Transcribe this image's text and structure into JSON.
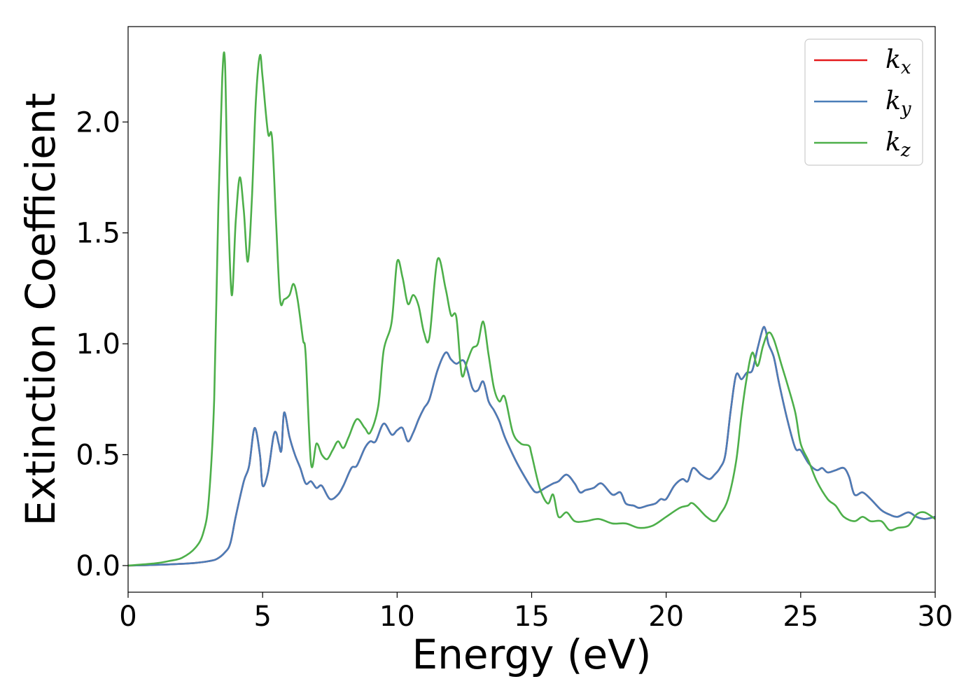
{
  "chart_data": {
    "type": "line",
    "title": "",
    "xlabel": "Energy (eV)",
    "ylabel": "Extinction Coefficient",
    "xlim": [
      0,
      30
    ],
    "ylim": [
      -0.12,
      2.43
    ],
    "xticks": [
      0,
      5,
      10,
      15,
      20,
      25,
      30
    ],
    "yticks": [
      0.0,
      0.5,
      1.0,
      1.5,
      2.0
    ],
    "xtick_labels": [
      "0",
      "5",
      "10",
      "15",
      "20",
      "25",
      "30"
    ],
    "ytick_labels": [
      "0.0",
      "0.5",
      "1.0",
      "1.5",
      "2.0"
    ],
    "grid": false,
    "legend_position": "top-right",
    "series": [
      {
        "name": "k_x",
        "legend_base": "k",
        "legend_sub": "x",
        "color": "#e41a1c",
        "x": [
          0,
          1,
          2,
          2.5,
          3,
          3.3,
          3.6,
          3.8,
          4.0,
          4.3,
          4.5,
          4.7,
          4.9,
          5.0,
          5.2,
          5.4,
          5.5,
          5.6,
          5.7,
          5.8,
          6.0,
          6.2,
          6.4,
          6.6,
          6.8,
          7.0,
          7.2,
          7.5,
          7.8,
          8.0,
          8.3,
          8.5,
          8.8,
          9.0,
          9.2,
          9.5,
          9.8,
          10.0,
          10.2,
          10.4,
          10.6,
          10.8,
          11.0,
          11.2,
          11.5,
          11.8,
          12.0,
          12.2,
          12.5,
          12.8,
          13.0,
          13.2,
          13.4,
          13.6,
          13.8,
          14.0,
          14.3,
          14.6,
          15.0,
          15.2,
          15.5,
          15.8,
          16.0,
          16.3,
          16.6,
          16.8,
          17.0,
          17.3,
          17.6,
          18.0,
          18.3,
          18.5,
          18.8,
          19.0,
          19.3,
          19.6,
          19.8,
          20.0,
          20.3,
          20.6,
          20.8,
          21.0,
          21.3,
          21.6,
          21.8,
          22.0,
          22.2,
          22.4,
          22.6,
          22.8,
          23.0,
          23.2,
          23.4,
          23.6,
          23.7,
          23.8,
          24.0,
          24.2,
          24.5,
          24.8,
          25.0,
          25.3,
          25.6,
          25.8,
          26.0,
          26.3,
          26.6,
          26.8,
          27.0,
          27.3,
          27.6,
          28.0,
          28.3,
          28.6,
          29.0,
          29.3,
          29.6,
          30.0
        ],
        "y": [
          0,
          0.003,
          0.008,
          0.012,
          0.02,
          0.03,
          0.06,
          0.1,
          0.22,
          0.38,
          0.45,
          0.62,
          0.5,
          0.36,
          0.42,
          0.58,
          0.6,
          0.55,
          0.52,
          0.69,
          0.58,
          0.5,
          0.44,
          0.37,
          0.38,
          0.35,
          0.36,
          0.3,
          0.32,
          0.36,
          0.44,
          0.45,
          0.53,
          0.56,
          0.56,
          0.64,
          0.59,
          0.61,
          0.62,
          0.56,
          0.6,
          0.66,
          0.71,
          0.75,
          0.88,
          0.96,
          0.93,
          0.91,
          0.92,
          0.8,
          0.79,
          0.83,
          0.74,
          0.7,
          0.65,
          0.58,
          0.5,
          0.43,
          0.35,
          0.33,
          0.35,
          0.37,
          0.38,
          0.41,
          0.37,
          0.33,
          0.34,
          0.35,
          0.37,
          0.32,
          0.33,
          0.28,
          0.27,
          0.26,
          0.27,
          0.28,
          0.3,
          0.3,
          0.36,
          0.39,
          0.38,
          0.44,
          0.41,
          0.39,
          0.41,
          0.44,
          0.5,
          0.7,
          0.86,
          0.84,
          0.87,
          0.88,
          0.98,
          1.07,
          1.06,
          1.0,
          0.94,
          0.82,
          0.66,
          0.53,
          0.52,
          0.46,
          0.43,
          0.44,
          0.42,
          0.43,
          0.44,
          0.4,
          0.32,
          0.33,
          0.3,
          0.25,
          0.23,
          0.22,
          0.24,
          0.22,
          0.21,
          0.22
        ]
      },
      {
        "name": "k_y",
        "legend_base": "k",
        "legend_sub": "y",
        "color": "#4a7db8",
        "x": [
          0,
          1,
          2,
          2.5,
          3,
          3.3,
          3.6,
          3.8,
          4.0,
          4.3,
          4.5,
          4.7,
          4.9,
          5.0,
          5.2,
          5.4,
          5.5,
          5.6,
          5.7,
          5.8,
          6.0,
          6.2,
          6.4,
          6.6,
          6.8,
          7.0,
          7.2,
          7.5,
          7.8,
          8.0,
          8.3,
          8.5,
          8.8,
          9.0,
          9.2,
          9.5,
          9.8,
          10.0,
          10.2,
          10.4,
          10.6,
          10.8,
          11.0,
          11.2,
          11.5,
          11.8,
          12.0,
          12.2,
          12.5,
          12.8,
          13.0,
          13.2,
          13.4,
          13.6,
          13.8,
          14.0,
          14.3,
          14.6,
          15.0,
          15.2,
          15.5,
          15.8,
          16.0,
          16.3,
          16.6,
          16.8,
          17.0,
          17.3,
          17.6,
          18.0,
          18.3,
          18.5,
          18.8,
          19.0,
          19.3,
          19.6,
          19.8,
          20.0,
          20.3,
          20.6,
          20.8,
          21.0,
          21.3,
          21.6,
          21.8,
          22.0,
          22.2,
          22.4,
          22.6,
          22.8,
          23.0,
          23.2,
          23.4,
          23.6,
          23.7,
          23.8,
          24.0,
          24.2,
          24.5,
          24.8,
          25.0,
          25.3,
          25.6,
          25.8,
          26.0,
          26.3,
          26.6,
          26.8,
          27.0,
          27.3,
          27.6,
          28.0,
          28.3,
          28.6,
          29.0,
          29.3,
          29.6,
          30.0
        ],
        "y": [
          0,
          0.003,
          0.008,
          0.012,
          0.02,
          0.03,
          0.06,
          0.1,
          0.22,
          0.38,
          0.45,
          0.62,
          0.5,
          0.36,
          0.42,
          0.58,
          0.6,
          0.55,
          0.52,
          0.69,
          0.58,
          0.5,
          0.44,
          0.37,
          0.38,
          0.35,
          0.36,
          0.3,
          0.32,
          0.36,
          0.44,
          0.45,
          0.53,
          0.56,
          0.56,
          0.64,
          0.59,
          0.61,
          0.62,
          0.56,
          0.6,
          0.66,
          0.71,
          0.75,
          0.88,
          0.96,
          0.93,
          0.91,
          0.92,
          0.8,
          0.79,
          0.83,
          0.74,
          0.7,
          0.65,
          0.58,
          0.5,
          0.43,
          0.35,
          0.33,
          0.35,
          0.37,
          0.38,
          0.41,
          0.37,
          0.33,
          0.34,
          0.35,
          0.37,
          0.32,
          0.33,
          0.28,
          0.27,
          0.26,
          0.27,
          0.28,
          0.3,
          0.3,
          0.36,
          0.39,
          0.38,
          0.44,
          0.41,
          0.39,
          0.41,
          0.44,
          0.5,
          0.7,
          0.86,
          0.84,
          0.87,
          0.88,
          0.98,
          1.07,
          1.06,
          1.0,
          0.94,
          0.82,
          0.66,
          0.53,
          0.52,
          0.46,
          0.43,
          0.44,
          0.42,
          0.43,
          0.44,
          0.4,
          0.32,
          0.33,
          0.3,
          0.25,
          0.23,
          0.22,
          0.24,
          0.22,
          0.21,
          0.22
        ]
      },
      {
        "name": "k_z",
        "legend_base": "k",
        "legend_sub": "z",
        "color": "#4daf4a",
        "x": [
          0,
          1,
          1.5,
          2,
          2.5,
          2.8,
          3.0,
          3.2,
          3.35,
          3.5,
          3.6,
          3.7,
          3.85,
          4.0,
          4.15,
          4.3,
          4.45,
          4.6,
          4.75,
          4.9,
          5.0,
          5.2,
          5.35,
          5.5,
          5.65,
          5.8,
          6.0,
          6.15,
          6.3,
          6.5,
          6.6,
          6.8,
          7.0,
          7.2,
          7.4,
          7.6,
          7.8,
          8.0,
          8.2,
          8.5,
          8.8,
          9.0,
          9.3,
          9.5,
          9.8,
          10.0,
          10.2,
          10.4,
          10.6,
          10.8,
          11.0,
          11.2,
          11.5,
          11.8,
          12.0,
          12.2,
          12.4,
          12.6,
          12.8,
          13.0,
          13.2,
          13.4,
          13.6,
          13.8,
          14.0,
          14.3,
          14.6,
          14.9,
          15.0,
          15.3,
          15.6,
          15.8,
          16.0,
          16.3,
          16.6,
          17.0,
          17.5,
          18.0,
          18.5,
          19.0,
          19.5,
          20.0,
          20.5,
          20.8,
          21.0,
          21.5,
          21.8,
          22.0,
          22.3,
          22.6,
          22.8,
          23.0,
          23.2,
          23.4,
          23.6,
          23.8,
          24.0,
          24.3,
          24.5,
          24.8,
          25.0,
          25.3,
          25.6,
          26.0,
          26.3,
          26.6,
          27.0,
          27.3,
          27.6,
          28.0,
          28.3,
          28.6,
          29.0,
          29.3,
          29.6,
          30.0
        ],
        "y": [
          0,
          0.01,
          0.02,
          0.035,
          0.08,
          0.15,
          0.3,
          0.75,
          1.6,
          2.2,
          2.27,
          1.7,
          1.22,
          1.55,
          1.75,
          1.6,
          1.37,
          1.65,
          2.1,
          2.3,
          2.2,
          1.95,
          1.93,
          1.55,
          1.2,
          1.2,
          1.22,
          1.27,
          1.2,
          1.02,
          0.95,
          0.46,
          0.55,
          0.5,
          0.48,
          0.52,
          0.56,
          0.53,
          0.58,
          0.66,
          0.62,
          0.6,
          0.72,
          0.97,
          1.1,
          1.37,
          1.3,
          1.18,
          1.22,
          1.17,
          1.05,
          1.03,
          1.38,
          1.25,
          1.13,
          1.12,
          0.86,
          0.92,
          0.98,
          1.0,
          1.1,
          0.95,
          0.8,
          0.74,
          0.76,
          0.6,
          0.55,
          0.54,
          0.5,
          0.35,
          0.28,
          0.32,
          0.22,
          0.24,
          0.2,
          0.2,
          0.21,
          0.19,
          0.19,
          0.17,
          0.18,
          0.22,
          0.26,
          0.27,
          0.28,
          0.22,
          0.2,
          0.23,
          0.3,
          0.47,
          0.68,
          0.85,
          0.96,
          0.9,
          0.99,
          1.05,
          1.02,
          0.9,
          0.82,
          0.69,
          0.55,
          0.47,
          0.38,
          0.3,
          0.27,
          0.22,
          0.2,
          0.22,
          0.2,
          0.2,
          0.16,
          0.17,
          0.18,
          0.23,
          0.24,
          0.21
        ]
      }
    ]
  }
}
